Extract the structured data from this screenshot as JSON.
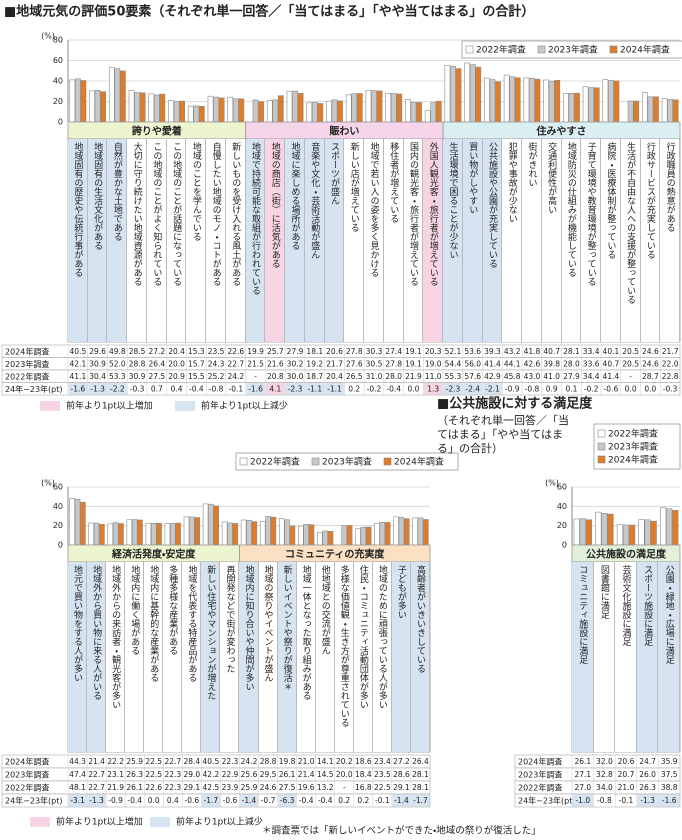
{
  "chart_data": [
    {
      "type": "bar",
      "title": "■地域元気の評価50要素（それぞれ単一回答／「当てはまる」「やや当てはまる」の合計）",
      "ylabel": "(%)",
      "groups": [
        {
          "name": "誇りや愛着",
          "color": "#eef4cf",
          "categories": [
            "地域固有の歴史や伝統行事がある",
            "地域固有の生活文化がある",
            "自然が豊かな土地である",
            "大切に守り続けたい地域資源がある",
            "この地域のことがよく知られている",
            "この地域のことが話題になっている",
            "地域のことを学んでいる",
            "自慢したい地域のモノ・コトがある",
            "新しいものを受け入れる風土がある"
          ]
        },
        {
          "name": "賑わい",
          "color": "#f6d4ea",
          "categories": [
            "地域で持続可能な取組が行われている",
            "地域の商店（街）に活気がある",
            "地域に楽しめる場所がある",
            "音楽や文化・芸術活動が盛ん",
            "スポーツが盛ん",
            "新しい店が増えている",
            "地域で若い人の姿を多く見かける",
            "移住者が増えている",
            "国内の観光客・旅行者が増えている",
            "外国人観光客・旅行者が増えている"
          ]
        },
        {
          "name": "住みやすさ",
          "color": "#dbeef2",
          "categories": [
            "生活環境で困ることが少ない",
            "買い物がしやすい",
            "公共施設や公園が充実している",
            "犯罪や事故が少ない",
            "街がきれい",
            "交通利便性が高い",
            "地域防災の仕組みが機能している",
            "子育て環境や教育環境が整っている",
            "病院・医療体制が整っている",
            "生活が不自由な人への支援が整っている",
            "行政サービスが充実している",
            "行政職員の熱意がある"
          ]
        }
      ],
      "series": [
        {
          "name": "2022年調査",
          "color": "#ffffff",
          "values": [
            41.1,
            30.4,
            53.3,
            30.9,
            27.5,
            20.9,
            15.5,
            25.2,
            24.2,
            null,
            20.8,
            30.0,
            18.7,
            20.4,
            26.5,
            31.0,
            28.0,
            21.9,
            11.0,
            55.3,
            57.6,
            42.9,
            45.8,
            43.0,
            41.0,
            27.9,
            34.4,
            41.4,
            null,
            28.7,
            22.8
          ],
          "value_labels": [
            "41.1",
            "30.4",
            "53.3",
            "30.9",
            "27.5",
            "20.9",
            "15.5",
            "25.2",
            "24.2",
            "-",
            "20.8",
            "30.0",
            "18.7",
            "20.4",
            "26.5",
            "31.0",
            "28.0",
            "21.9",
            "11.0",
            "55.3",
            "57.6",
            "42.9",
            "45.8",
            "43.0",
            "41.0",
            "27.9",
            "34.4",
            "41.4",
            "-",
            "28.7",
            "22.8"
          ]
        },
        {
          "name": "2023年調査",
          "color": "#c8c8c8",
          "values": [
            42.1,
            30.9,
            52.0,
            28.8,
            26.4,
            20.0,
            15.7,
            24.3,
            22.7,
            21.5,
            21.6,
            30.2,
            19.2,
            21.7,
            27.6,
            30.5,
            27.8,
            19.1,
            19.0,
            54.4,
            56.0,
            41.4,
            44.1,
            42.6,
            39.8,
            28.0,
            33.6,
            40.7,
            20.5,
            24.6,
            22.0
          ],
          "value_labels": [
            "42.1",
            "30.9",
            "52.0",
            "28.8",
            "26.4",
            "20.0",
            "15.7",
            "24.3",
            "22.7",
            "21.5",
            "21.6",
            "30.2",
            "19.2",
            "21.7",
            "27.6",
            "30.5",
            "27.8",
            "19.1",
            "19.0",
            "54.4",
            "56.0",
            "41.4",
            "44.1",
            "42.6",
            "39.8",
            "28.0",
            "33.6",
            "40.7",
            "20.5",
            "24.6",
            "22.0"
          ]
        },
        {
          "name": "2024年調査",
          "color": "#e07b27",
          "values": [
            40.5,
            29.6,
            49.8,
            28.5,
            27.2,
            20.4,
            15.3,
            23.5,
            22.6,
            19.9,
            25.7,
            27.9,
            18.1,
            20.6,
            27.8,
            30.3,
            27.4,
            19.1,
            20.3,
            52.1,
            53.6,
            39.3,
            43.2,
            41.8,
            40.7,
            28.1,
            33.4,
            40.1,
            20.5,
            24.6,
            21.7
          ],
          "value_labels": [
            "40.5",
            "29.6",
            "49.8",
            "28.5",
            "27.2",
            "20.4",
            "15.3",
            "23.5",
            "22.6",
            "19.9",
            "25.7",
            "27.9",
            "18.1",
            "20.6",
            "27.8",
            "30.3",
            "27.4",
            "19.1",
            "20.3",
            "52.1",
            "53.6",
            "39.3",
            "43.2",
            "41.8",
            "40.7",
            "28.1",
            "33.4",
            "40.1",
            "20.5",
            "24.6",
            "21.7"
          ]
        }
      ],
      "diff": {
        "label": "24年−23年(pt)",
        "values": [
          -1.6,
          -1.3,
          -2.2,
          -0.3,
          0.7,
          0.4,
          -0.4,
          -0.8,
          -0.1,
          -1.6,
          4.1,
          -2.3,
          -1.1,
          -1.1,
          0.2,
          -0.2,
          -0.4,
          0.0,
          1.3,
          -2.3,
          -2.4,
          -2.1,
          -0.9,
          -0.8,
          0.9,
          0.1,
          -0.2,
          -0.6,
          0.0,
          0.0,
          -0.3
        ],
        "value_labels": [
          "-1.6",
          "-1.3",
          "-2.2",
          "-0.3",
          "0.7",
          "0.4",
          "-0.4",
          "-0.8",
          "-0.1",
          "-1.6",
          "4.1",
          "-2.3",
          "-1.1",
          "-1.1",
          "0.2",
          "-0.2",
          "-0.4",
          "0.0",
          "1.3",
          "-2.3",
          "-2.4",
          "-2.1",
          "-0.9",
          "-0.8",
          "0.9",
          "0.1",
          "-0.2",
          "-0.6",
          "0.0",
          "0.0",
          "-0.3"
        ]
      },
      "notes": [
        "前年より1pt以上増加",
        "前年より1pt以上減少"
      ],
      "ylim": [
        0,
        80
      ],
      "yticks": [
        0,
        20,
        40,
        60,
        80
      ],
      "grid": true
    },
    {
      "type": "bar",
      "ylabel": "(%)",
      "groups": [
        {
          "name": "経済活発度・安定度",
          "color": "#eef4cf",
          "categories": [
            "地元で買い物をする人が多い",
            "地域外から買い物に来る人がいる",
            "地域外からの来訪者・観光客が多い",
            "地域内に働く場がある",
            "地域内に基幹的な産業がある",
            "多種多様な産業がある",
            "地域を代表する特産品がある",
            "新しい住宅やマンションが増えた",
            "再開発などで街が変わった"
          ]
        },
        {
          "name": "コミュニティの充実度",
          "color": "#fbe0c4",
          "categories": [
            "地域内に知り合いや仲間が多い",
            "地域の祭りやイベントが盛ん",
            "新しいイベントや祭りが復活＊",
            "地域一体となった取り組みがある",
            "他地域との交流が盛ん",
            "多様な価値観・生き方が尊重されている",
            "住民・コミュニティ活動団体が多い",
            "地域のために頑張っている人が多い",
            "子どもが多い",
            "高齢者がいきいきしている"
          ]
        }
      ],
      "series": [
        {
          "name": "2022年調査",
          "color": "#ffffff",
          "values": [
            48.1,
            22.7,
            21.9,
            26.1,
            22.6,
            22.3,
            29.1,
            42.5,
            23.9,
            25.9,
            24.6,
            27.5,
            19.6,
            13.2,
            null,
            16.8,
            22.5,
            29.1,
            28.1
          ],
          "value_labels": [
            "48.1",
            "22.7",
            "21.9",
            "26.1",
            "22.6",
            "22.3",
            "29.1",
            "42.5",
            "23.9",
            "25.9",
            "24.6",
            "27.5",
            "19.6",
            "13.2",
            "-",
            "16.8",
            "22.5",
            "29.1",
            "28.1"
          ]
        },
        {
          "name": "2023年調査",
          "color": "#c8c8c8",
          "values": [
            47.4,
            22.7,
            23.1,
            26.3,
            22.5,
            22.3,
            29.0,
            42.2,
            22.9,
            25.6,
            29.5,
            26.1,
            21.4,
            14.5,
            20.0,
            18.4,
            23.5,
            28.6,
            28.1
          ],
          "value_labels": [
            "47.4",
            "22.7",
            "23.1",
            "26.3",
            "22.5",
            "22.3",
            "29.0",
            "42.2",
            "22.9",
            "25.6",
            "29.5",
            "26.1",
            "21.4",
            "14.5",
            "20.0",
            "18.4",
            "23.5",
            "28.6",
            "28.1"
          ]
        },
        {
          "name": "2024年調査",
          "color": "#e07b27",
          "values": [
            44.3,
            21.4,
            22.2,
            25.9,
            22.5,
            22.7,
            28.4,
            40.5,
            22.3,
            24.2,
            28.8,
            19.8,
            21.0,
            14.1,
            20.2,
            18.6,
            23.4,
            27.2,
            26.4
          ],
          "value_labels": [
            "44.3",
            "21.4",
            "22.2",
            "25.9",
            "22.5",
            "22.7",
            "28.4",
            "40.5",
            "22.3",
            "24.2",
            "28.8",
            "19.8",
            "21.0",
            "14.1",
            "20.2",
            "18.6",
            "23.4",
            "27.2",
            "26.4"
          ]
        }
      ],
      "diff": {
        "label": "24年−23年(pt)",
        "values": [
          -3.1,
          -1.3,
          -0.9,
          -0.4,
          0.0,
          0.4,
          -0.6,
          -1.7,
          -0.6,
          -1.4,
          -0.7,
          -6.3,
          -0.4,
          -0.4,
          0.2,
          0.2,
          -0.1,
          -1.4,
          -1.7
        ],
        "value_labels": [
          "-3.1",
          "-1.3",
          "-0.9",
          "-0.4",
          "0.0",
          "0.4",
          "-0.6",
          "-1.7",
          "-0.6",
          "-1.4",
          "-0.7",
          "-6.3",
          "-0.4",
          "-0.4",
          "0.2",
          "0.2",
          "-0.1",
          "-1.4",
          "-1.7"
        ]
      },
      "notes": [
        "前年より1pt以上増加",
        "前年より1pt以上減少"
      ],
      "footnote": "＊調査票では「新しいイベントができた・地域の祭りが復活した」",
      "ylim": [
        0,
        60
      ],
      "yticks": [
        0,
        20,
        40,
        60
      ],
      "grid": true
    },
    {
      "type": "bar",
      "title": "■公共施設に対する満足度",
      "subtitle": "（それぞれ単一回答／「当てはまる」「やや当てはまる」の合計）",
      "ylabel": "(%)",
      "groups": [
        {
          "name": "公共施設の満足度",
          "color": "#e2efd9",
          "categories": [
            "コミュニティ施設に満足",
            "図書館に満足",
            "芸術文化施設に満足",
            "スポーツ施設に満足",
            "公園・緑地・広場に満足"
          ]
        }
      ],
      "series": [
        {
          "name": "2022年調査",
          "color": "#ffffff",
          "values": [
            27.0,
            34.0,
            21.0,
            26.3,
            38.8
          ],
          "value_labels": [
            "27.0",
            "34.0",
            "21.0",
            "26.3",
            "38.8"
          ]
        },
        {
          "name": "2023年調査",
          "color": "#c8c8c8",
          "values": [
            27.1,
            32.8,
            20.7,
            26.0,
            37.5
          ],
          "value_labels": [
            "27.1",
            "32.8",
            "20.7",
            "26.0",
            "37.5"
          ]
        },
        {
          "name": "2024年調査",
          "color": "#e07b27",
          "values": [
            26.1,
            32.0,
            20.6,
            24.7,
            35.9
          ],
          "value_labels": [
            "26.1",
            "32.0",
            "20.6",
            "24.7",
            "35.9"
          ]
        }
      ],
      "diff": {
        "label": "24年−23年(pt)",
        "values": [
          -1.0,
          -0.8,
          -0.1,
          -1.3,
          -1.6
        ],
        "value_labels": [
          "-1.0",
          "-0.8",
          "-0.1",
          "-1.3",
          "-1.6"
        ]
      },
      "ylim": [
        0,
        60
      ],
      "yticks": [
        0,
        20,
        40,
        60
      ],
      "grid": true
    }
  ]
}
